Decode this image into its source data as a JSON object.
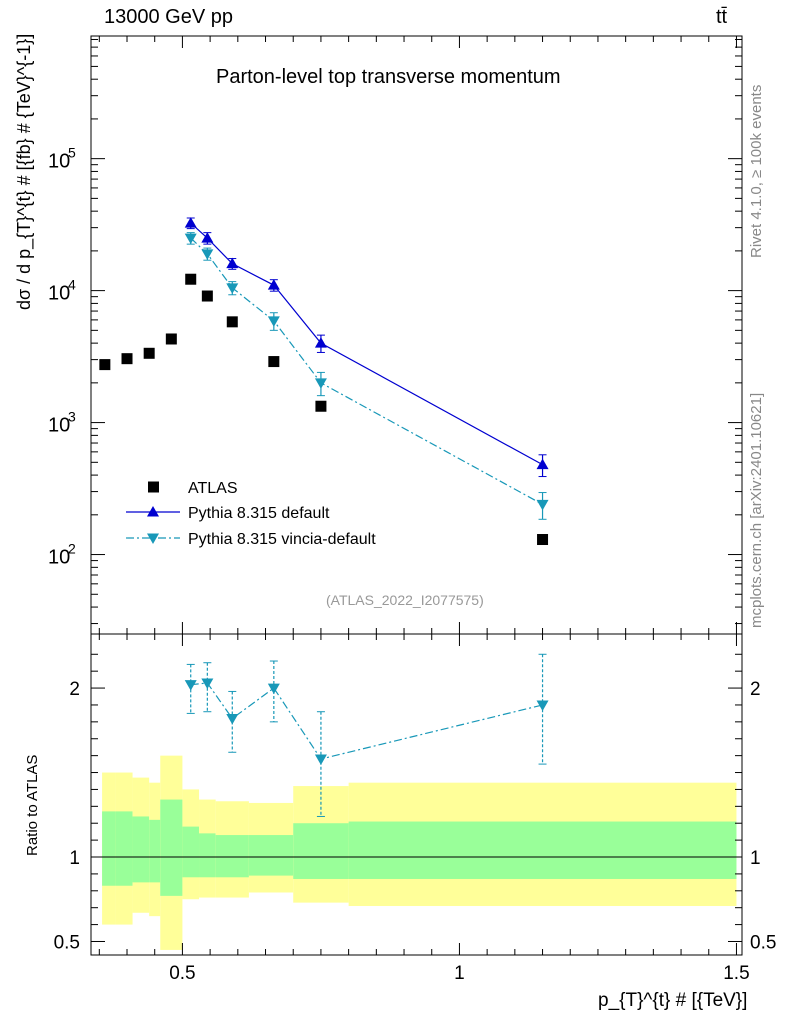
{
  "header": {
    "energy": "13000 GeV pp",
    "process": "tt̄"
  },
  "side_labels": {
    "rivet": "Rivet 4.1.0, ≥ 100k events",
    "mcplots": "mcplots.cern.ch [arXiv:2401.10621]"
  },
  "chart_data": {
    "type": "scatter",
    "title": "Parton-level top transverse momentum",
    "analysis_id": "(ATLAS_2022_I2077575)",
    "xlabel": "p_{T}^{t} # [{TeV}]",
    "ylabel": "dσ / d p_{T}^{t} # [{fb} # {TeV}^{-1}]",
    "ratio_ylabel": "Ratio to ATLAS",
    "xlim": [
      0.335,
      1.51
    ],
    "ylim": [
      25,
      850000
    ],
    "yscale": "log",
    "ratio_ylim": [
      0.42,
      2.32
    ],
    "x_ticks": [
      {
        "v": 0.5,
        "label": "0.5"
      },
      {
        "v": 1.0,
        "label": "1"
      },
      {
        "v": 1.5,
        "label": "1.5"
      }
    ],
    "y_ticks": [
      {
        "v": 100,
        "base": "10",
        "exp": "2"
      },
      {
        "v": 1000,
        "base": "10",
        "exp": "3"
      },
      {
        "v": 10000,
        "base": "10",
        "exp": "4"
      },
      {
        "v": 100000,
        "base": "10",
        "exp": "5"
      }
    ],
    "ratio_ticks": [
      {
        "v": 0.5,
        "label": "0.5"
      },
      {
        "v": 1,
        "label": "1"
      },
      {
        "v": 2,
        "label": "2"
      }
    ],
    "legend_position": "bottom-left",
    "series": [
      {
        "name": "ATLAS",
        "style": "data",
        "color": "#000000",
        "x": [
          0.36,
          0.4,
          0.44,
          0.48,
          0.515,
          0.545,
          0.59,
          0.665,
          0.75,
          1.15
        ],
        "y": [
          2750,
          3050,
          3350,
          4300,
          12200,
          9100,
          5800,
          2900,
          1330,
          130
        ]
      },
      {
        "name": "Pythia 8.315 default",
        "style": "solid",
        "marker": "triangle-up",
        "color": "#0000d0",
        "x": [
          0.515,
          0.545,
          0.59,
          0.665,
          0.75,
          1.15
        ],
        "y": [
          32500,
          25000,
          16000,
          11000,
          4000,
          480
        ],
        "yerr": [
          3000,
          2500,
          1500,
          1100,
          600,
          90
        ]
      },
      {
        "name": "Pythia 8.315 vincia-default",
        "style": "dash-dot",
        "marker": "triangle-down",
        "color": "#1898b8",
        "x": [
          0.515,
          0.545,
          0.59,
          0.665,
          0.75,
          1.15
        ],
        "y": [
          25000,
          19000,
          10500,
          5900,
          2000,
          240
        ],
        "yerr": [
          2500,
          2000,
          1200,
          900,
          400,
          55
        ]
      }
    ],
    "ratio_series": {
      "name": "Pythia 8.315 vincia-default",
      "x": [
        0.515,
        0.545,
        0.59,
        0.665,
        0.75,
        1.15
      ],
      "y": [
        2.02,
        2.03,
        1.82,
        2.0,
        1.58,
        1.9
      ],
      "yerr_lo": [
        0.17,
        0.17,
        0.2,
        0.2,
        0.34,
        0.35
      ],
      "yerr_hi": [
        0.12,
        0.12,
        0.16,
        0.16,
        0.28,
        0.3
      ]
    },
    "ratio_bands": {
      "edges": [
        0.355,
        0.38,
        0.41,
        0.44,
        0.46,
        0.5,
        0.53,
        0.56,
        0.62,
        0.7,
        0.8,
        1.5
      ],
      "yellow_lo": [
        0.6,
        0.6,
        0.67,
        0.65,
        0.45,
        0.75,
        0.76,
        0.76,
        0.79,
        0.73,
        0.71
      ],
      "yellow_hi": [
        1.5,
        1.5,
        1.47,
        1.44,
        1.6,
        1.4,
        1.34,
        1.33,
        1.32,
        1.42,
        1.44
      ],
      "green_lo": [
        0.83,
        0.83,
        0.85,
        0.85,
        0.77,
        0.88,
        0.88,
        0.88,
        0.89,
        0.87,
        0.87
      ],
      "green_hi": [
        1.27,
        1.27,
        1.24,
        1.22,
        1.34,
        1.18,
        1.14,
        1.13,
        1.13,
        1.2,
        1.21
      ]
    }
  }
}
